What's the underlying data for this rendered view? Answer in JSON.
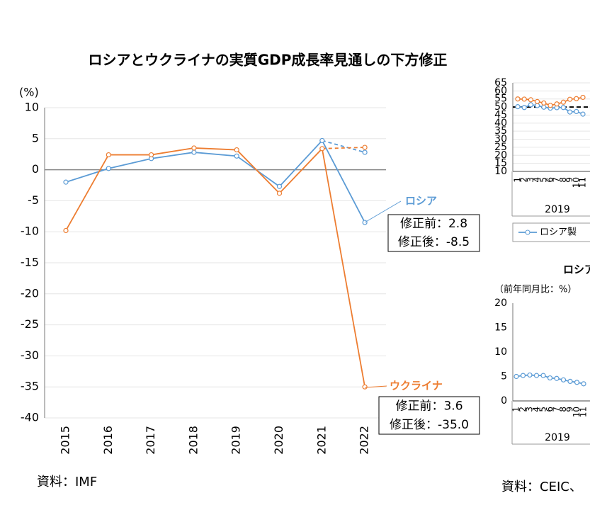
{
  "chart_data": [
    {
      "type": "line",
      "title": "ロシアとウクライナの実質GDP成長率見通しの下方修正",
      "y_label": "(%)",
      "categories": [
        "2015",
        "2016",
        "2017",
        "2018",
        "2019",
        "2020",
        "2021",
        "2022"
      ],
      "series": [
        {
          "name": "ロシア",
          "color": "#5b9bd5",
          "values": [
            -2.0,
            0.2,
            1.8,
            2.8,
            2.2,
            -2.7,
            4.7,
            -8.5
          ],
          "forecast_before_revision": [
            null,
            null,
            null,
            null,
            null,
            null,
            null,
            2.8
          ],
          "annotation": [
            "修正前：2.8",
            "修正後：-8.5"
          ]
        },
        {
          "name": "ウクライナ",
          "color": "#ed7d31",
          "values": [
            -9.8,
            2.4,
            2.4,
            3.5,
            3.2,
            -3.8,
            3.4,
            -35.0
          ],
          "forecast_before_revision": [
            null,
            null,
            null,
            null,
            null,
            null,
            null,
            3.6
          ],
          "annotation": [
            "修正前：3.6",
            "修正後：-35.0"
          ]
        }
      ],
      "ylim": [
        -40,
        10
      ],
      "yticks": [
        -40,
        -35,
        -30,
        -25,
        -20,
        -15,
        -10,
        -5,
        0,
        5,
        10
      ],
      "grid": true,
      "source": "資料：IMF"
    },
    {
      "type": "line",
      "categories": [
        "1",
        "2",
        "3",
        "4",
        "5",
        "6",
        "7",
        "8",
        "9",
        "10",
        "11"
      ],
      "group_label": "2019",
      "series": [
        {
          "name": "ロシア製",
          "color": "#5b9bd5",
          "values": [
            50.2,
            49.7,
            51.4,
            50.9,
            49.9,
            49.3,
            49.6,
            49.7,
            46.9,
            47.2,
            45.6
          ]
        },
        {
          "color": "#ed7d31",
          "values": [
            55.0,
            54.9,
            54.5,
            53.4,
            52.5,
            51.0,
            51.9,
            53.0,
            54.8,
            55.2,
            56.0
          ]
        }
      ],
      "ylim": [
        10,
        65
      ],
      "yticks": [
        10,
        15,
        20,
        25,
        30,
        35,
        40,
        45,
        50,
        55,
        60,
        65
      ],
      "grid": true,
      "reference_line": 50
    },
    {
      "type": "line",
      "title": "ロシア",
      "y_label": "（前年同月比：%）",
      "categories": [
        "1",
        "2",
        "3",
        "4",
        "5",
        "6",
        "7",
        "8",
        "9",
        "10",
        "11"
      ],
      "group_label": "2019",
      "series": [
        {
          "color": "#5b9bd5",
          "values": [
            5.0,
            5.2,
            5.3,
            5.2,
            5.2,
            4.7,
            4.6,
            4.3,
            4.0,
            3.8,
            3.5
          ]
        }
      ],
      "ylim": [
        0,
        20
      ],
      "yticks": [
        0,
        5,
        10,
        15,
        20
      ],
      "grid": false,
      "source": "資料：CEIC、"
    }
  ]
}
